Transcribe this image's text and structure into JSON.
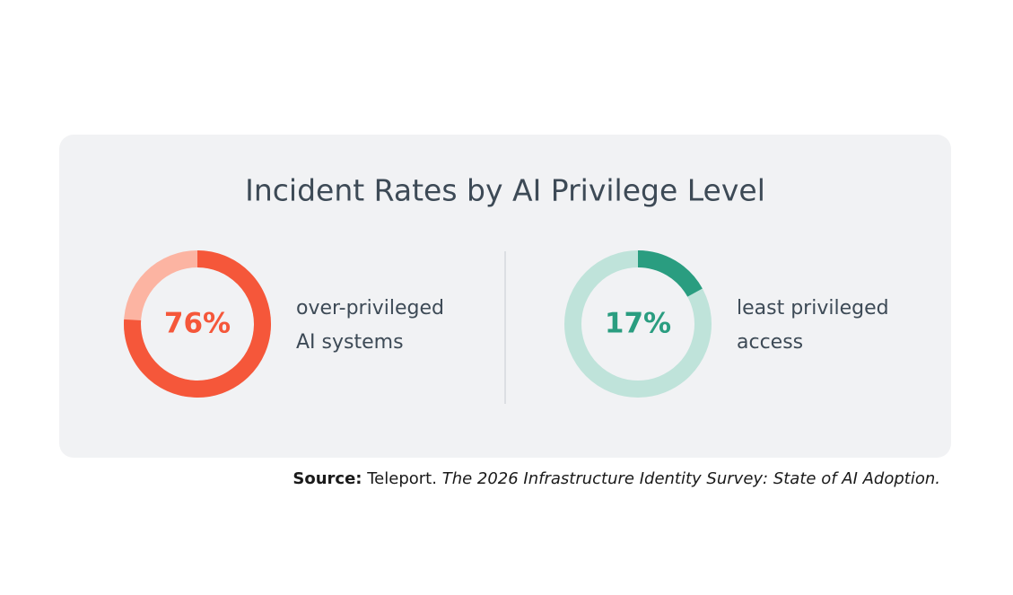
{
  "title": "Incident Rates by AI Privilege Level",
  "chart_data": [
    {
      "type": "donut",
      "values": [
        76
      ],
      "value_labels": [
        "76%"
      ],
      "label": [
        "over-privileged",
        "AI systems"
      ],
      "color": "#f5573a",
      "track_color": "#fcb4a2"
    },
    {
      "type": "donut",
      "values": [
        17
      ],
      "value_labels": [
        "17%"
      ],
      "label": [
        "least privileged",
        "access"
      ],
      "color": "#2a9d80",
      "track_color": "#bfe3da"
    }
  ],
  "source": {
    "lead": "Source:",
    "publisher": "Teleport.",
    "work": "The 2026 Infrastructure Identity Survey: State of AI Adoption."
  }
}
